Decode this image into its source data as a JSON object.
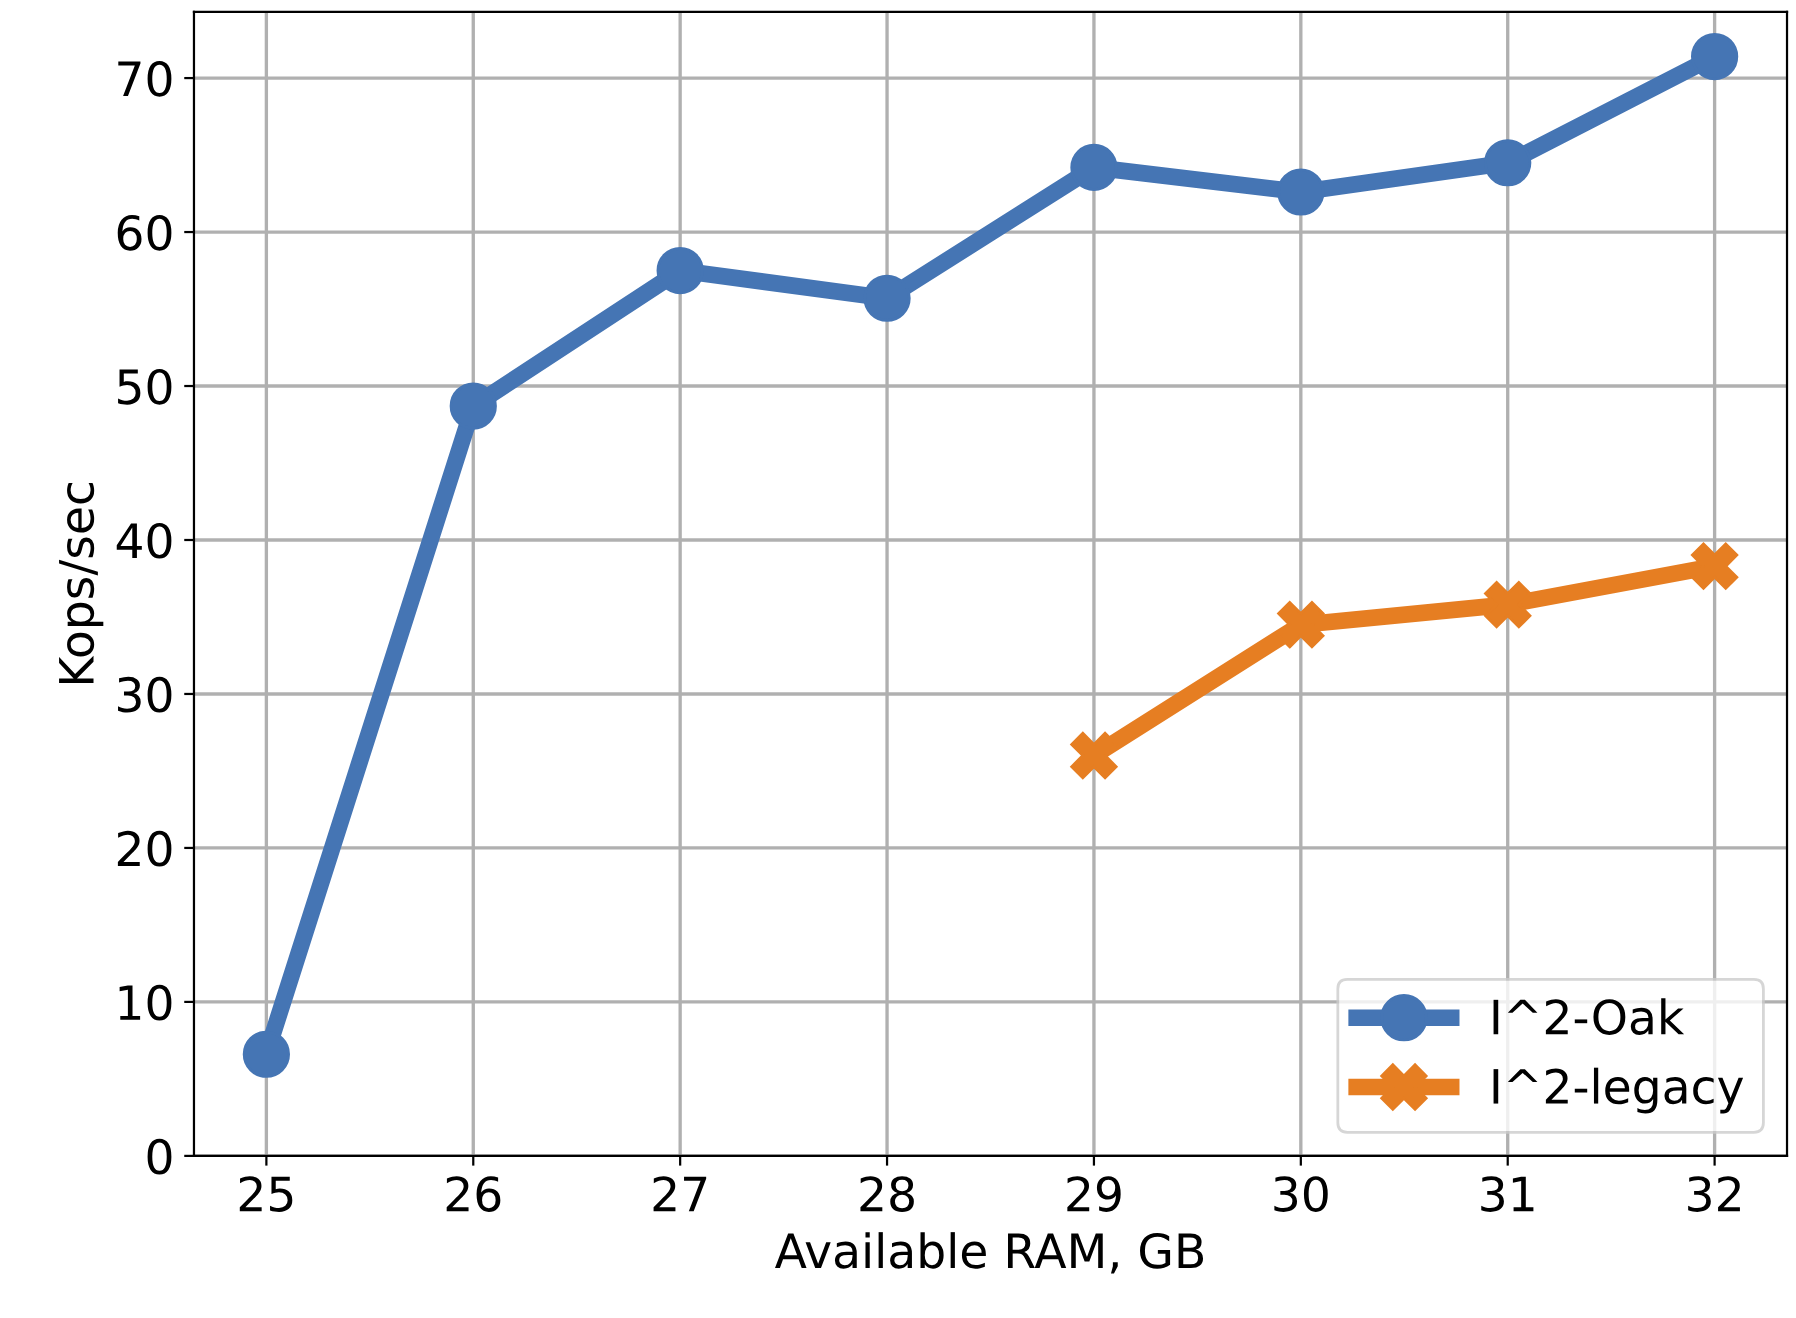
{
  "chart_data": {
    "type": "line",
    "xlabel": "Available RAM, GB",
    "ylabel": "Kops/sec",
    "series": [
      {
        "name": "I^2-Oak",
        "color": "#4575b4",
        "marker": "circle",
        "x": [
          25,
          26,
          27,
          28,
          29,
          30,
          31,
          32
        ],
        "values": [
          6.6,
          48.7,
          57.5,
          55.7,
          64.2,
          62.6,
          64.5,
          71.4
        ]
      },
      {
        "name": "I^2-legacy",
        "color": "#e67e22",
        "marker": "cross",
        "x": [
          29,
          30,
          31,
          32
        ],
        "values": [
          26.0,
          34.5,
          35.8,
          38.3
        ]
      }
    ],
    "xlim": [
      24.65,
      32.35
    ],
    "xticks": [
      25,
      26,
      27,
      28,
      29,
      30,
      31,
      32
    ],
    "ylim": [
      0,
      74.3
    ],
    "yticks": [
      0,
      10,
      20,
      30,
      40,
      50,
      60,
      70
    ],
    "grid": true,
    "legend": "bottom right",
    "line_style": "solid"
  }
}
